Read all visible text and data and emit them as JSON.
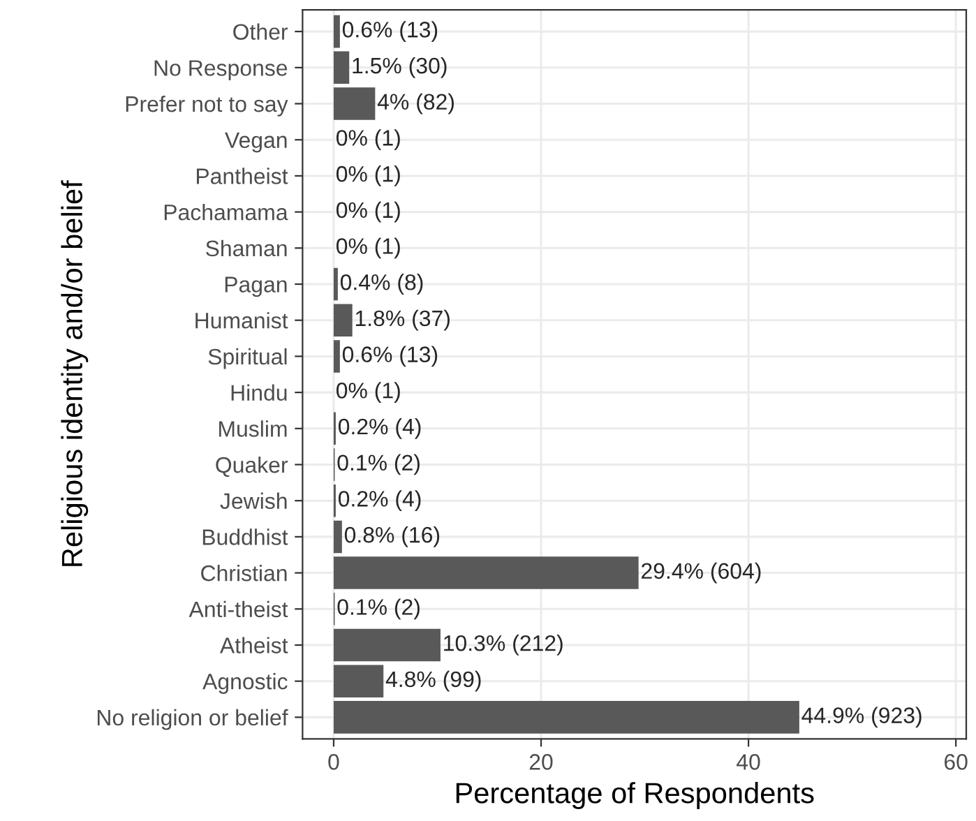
{
  "chart_data": {
    "type": "bar",
    "orientation": "horizontal",
    "xlabel": "Percentage of Respondents",
    "ylabel": "Religious identity and/or belief",
    "categories": [
      "Other",
      "No Response",
      "Prefer not to say",
      "Vegan",
      "Pantheist",
      "Pachamama",
      "Shaman",
      "Pagan",
      "Humanist",
      "Spiritual",
      "Hindu",
      "Muslim",
      "Quaker",
      "Jewish",
      "Buddhist",
      "Christian",
      "Anti-theist",
      "Atheist",
      "Agnostic",
      "No religion or belief"
    ],
    "values": [
      0.6,
      1.5,
      4,
      0,
      0,
      0,
      0,
      0.4,
      1.8,
      0.6,
      0,
      0.2,
      0.1,
      0.2,
      0.8,
      29.4,
      0.1,
      10.3,
      4.8,
      44.9
    ],
    "value_labels": [
      "0.6% (13)",
      "1.5% (30)",
      "4% (82)",
      "0% (1)",
      "0% (1)",
      "0% (1)",
      "0% (1)",
      "0.4% (8)",
      "1.8% (37)",
      "0.6% (13)",
      "0% (1)",
      "0.2% (4)",
      "0.1% (2)",
      "0.2% (4)",
      "0.8% (16)",
      "29.4% (604)",
      "0.1% (2)",
      "10.3% (212)",
      "4.8% (99)",
      "44.9% (923)"
    ],
    "color": "#595959",
    "xlim": [
      -3,
      61
    ],
    "xticks": [
      0,
      20,
      40,
      60
    ],
    "grid": true
  }
}
